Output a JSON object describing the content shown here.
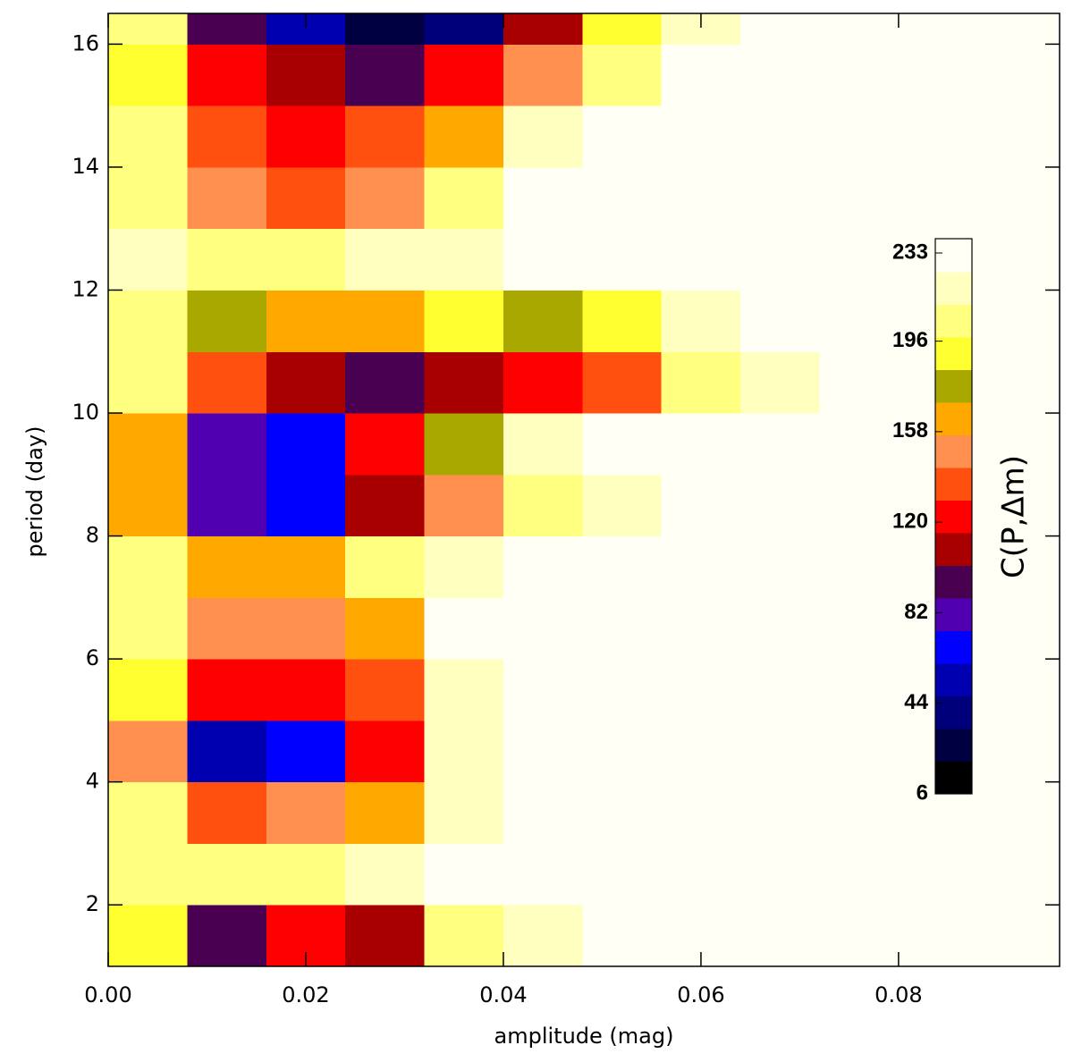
{
  "chart_data": {
    "type": "heatmap",
    "xlabel": "amplitude (mag)",
    "ylabel": "period (day)",
    "x": [
      0.004,
      0.012,
      0.02,
      0.028,
      0.036,
      0.044,
      0.052,
      0.06,
      0.068,
      0.076,
      0.084,
      0.092
    ],
    "y": [
      1.5,
      2.5,
      3.5,
      4.5,
      5.5,
      6.5,
      7.5,
      8.5,
      9.5,
      10.5,
      11.5,
      12.5,
      13.5,
      14.5,
      15.5,
      16.5
    ],
    "z": [
      [
        195,
        100,
        120,
        110,
        205,
        225,
        235,
        235,
        235,
        235,
        235,
        235
      ],
      [
        205,
        200,
        205,
        215,
        230,
        235,
        235,
        235,
        235,
        235,
        235,
        235
      ],
      [
        200,
        140,
        145,
        170,
        225,
        235,
        235,
        235,
        235,
        235,
        235,
        235
      ],
      [
        150,
        60,
        70,
        120,
        215,
        235,
        235,
        235,
        235,
        235,
        235,
        235
      ],
      [
        195,
        125,
        120,
        140,
        225,
        235,
        235,
        235,
        235,
        235,
        235,
        235
      ],
      [
        200,
        150,
        145,
        165,
        228,
        235,
        235,
        235,
        235,
        235,
        235,
        235
      ],
      [
        205,
        160,
        165,
        200,
        225,
        235,
        235,
        235,
        235,
        235,
        235,
        235
      ],
      [
        165,
        75,
        65,
        110,
        150,
        200,
        225,
        235,
        235,
        235,
        235,
        235
      ],
      [
        170,
        80,
        70,
        120,
        175,
        215,
        232,
        235,
        235,
        235,
        235,
        235
      ],
      [
        200,
        140,
        115,
        100,
        115,
        120,
        140,
        210,
        225,
        230,
        235,
        235
      ],
      [
        205,
        175,
        165,
        165,
        190,
        175,
        195,
        220,
        230,
        235,
        235,
        235
      ],
      [
        215,
        210,
        210,
        215,
        225,
        235,
        235,
        235,
        235,
        235,
        235,
        235
      ],
      [
        205,
        150,
        140,
        155,
        200,
        230,
        235,
        235,
        235,
        235,
        235,
        235
      ],
      [
        200,
        140,
        125,
        135,
        165,
        215,
        235,
        235,
        235,
        235,
        235,
        235
      ],
      [
        195,
        125,
        110,
        100,
        120,
        150,
        205,
        230,
        235,
        235,
        235,
        235
      ],
      [
        200,
        100,
        50,
        30,
        40,
        110,
        190,
        225,
        235,
        235,
        235,
        235
      ]
    ],
    "xlim": [
      0,
      0.0963
    ],
    "ylim": [
      1,
      16.5
    ],
    "xticks": [
      {
        "value": 0,
        "label": "0.00"
      },
      0.02,
      0.04,
      0.06,
      0.08
    ],
    "yticks": [
      2,
      4,
      6,
      8,
      10,
      12,
      14,
      16
    ],
    "colorbar": {
      "label": "C(P,Δm)",
      "lim": [
        6,
        239
      ],
      "ticks": [
        6,
        44,
        82,
        120,
        158,
        196,
        233
      ],
      "levels": [
        6,
        19.7,
        33.4,
        47.1,
        60.8,
        74.5,
        88.2,
        101.9,
        115.6,
        129.3,
        143,
        156.7,
        170.4,
        184.1,
        197.8,
        211.5,
        225.2,
        239
      ],
      "colors": [
        "#000000",
        "#000040",
        "#00007a",
        "#0000b0",
        "#0000ff",
        "#5000b0",
        "#4a0050",
        "#a80000",
        "#ff0000",
        "#ff5010",
        "#ff9050",
        "#ffa800",
        "#a8a800",
        "#ffff30",
        "#ffff80",
        "#ffffc0",
        "#fffff5"
      ]
    }
  }
}
